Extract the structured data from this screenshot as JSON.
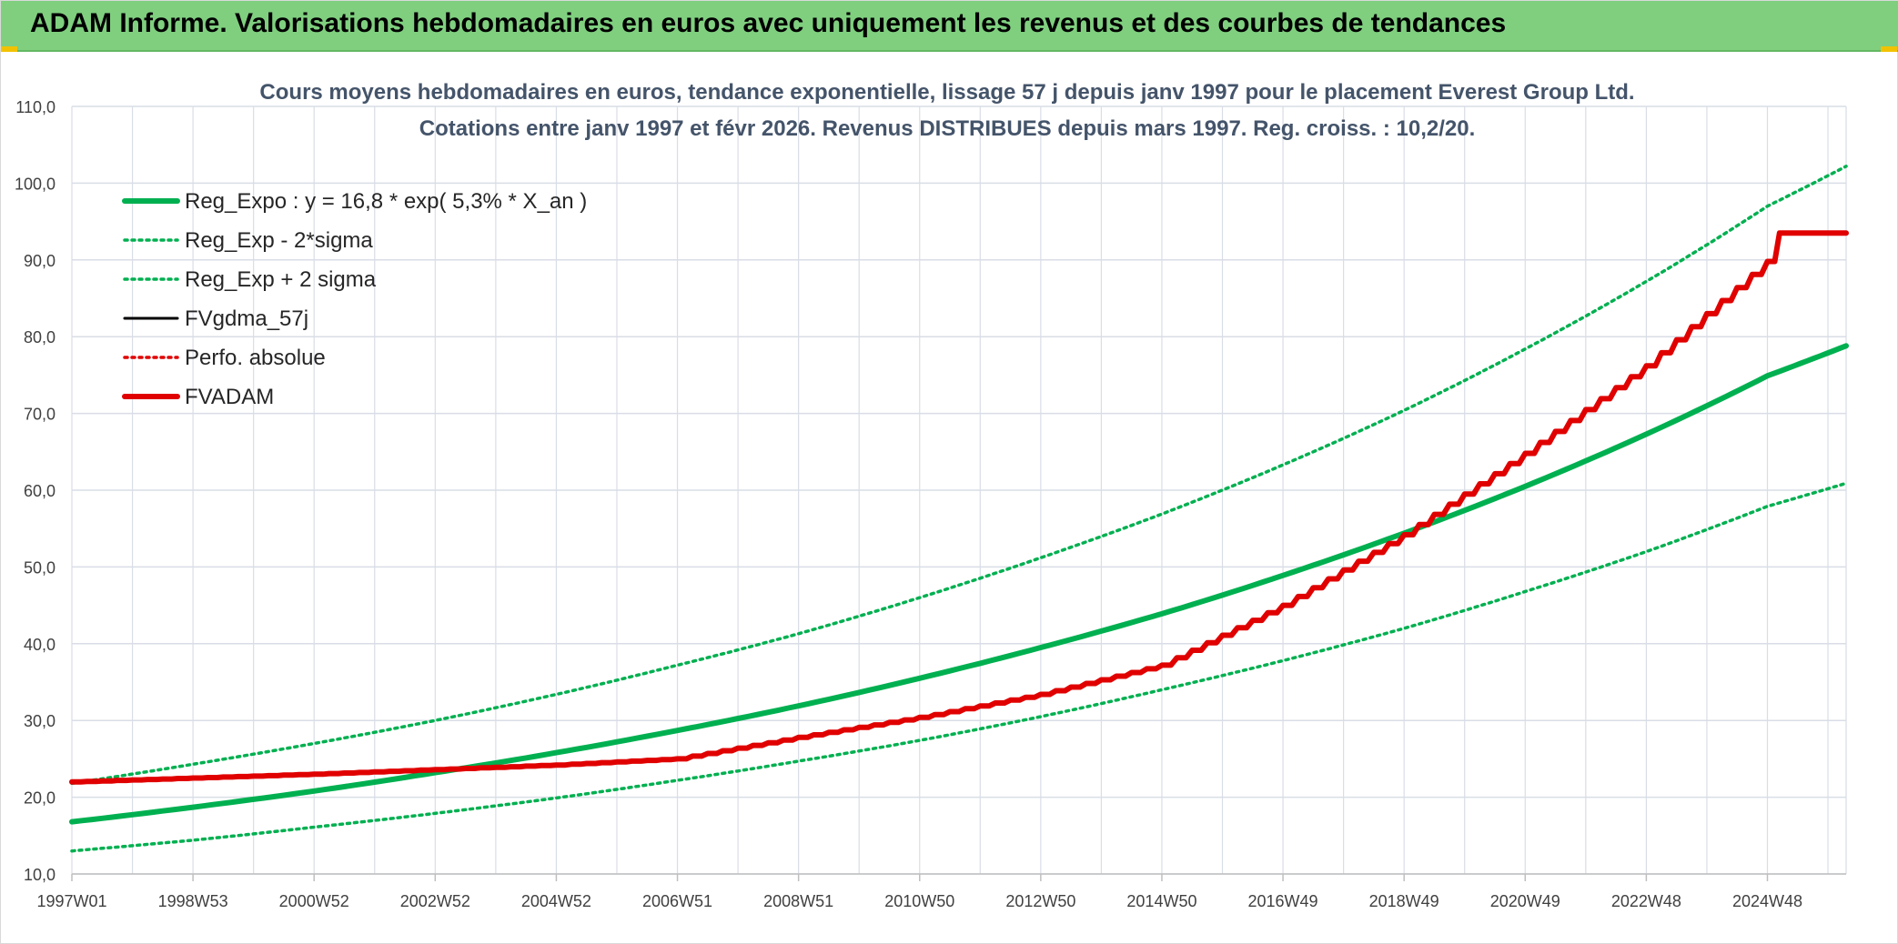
{
  "header": {
    "title": "ADAM Informe. Valorisations hebdomadaires en euros avec uniquement les revenus et des courbes de tendances"
  },
  "colors": {
    "banner": "#7fcf7f",
    "green": "#00b050",
    "red": "#e00000",
    "black": "#000000",
    "grid": "#d9dde6",
    "title_text": "#44546a"
  },
  "chart_data": {
    "type": "line",
    "title_lines": [
      "Cours moyens hebdomadaires en euros, tendance exponentielle, lissage 57 j depuis janv 1997 pour le placement Everest Group Ltd.",
      "Cotations entre janv 1997 et févr 2026. Revenus DISTRIBUES depuis mars 1997. Reg. croiss. : 10,2/20."
    ],
    "xlabel": "",
    "ylabel": "",
    "ylim": [
      10,
      110
    ],
    "xlim": [
      1997.0,
      2026.3
    ],
    "yticks": [
      "10,0",
      "20,0",
      "30,0",
      "40,0",
      "50,0",
      "60,0",
      "70,0",
      "80,0",
      "90,0",
      "100,0",
      "110,0"
    ],
    "xtick_labels": [
      {
        "label": "1997W01",
        "x": 1997.0
      },
      {
        "label": "1998W53",
        "x": 1999.0
      },
      {
        "label": "2000W52",
        "x": 2001.0
      },
      {
        "label": "2002W52",
        "x": 2003.0
      },
      {
        "label": "2004W52",
        "x": 2005.0
      },
      {
        "label": "2006W51",
        "x": 2007.0
      },
      {
        "label": "2008W51",
        "x": 2009.0
      },
      {
        "label": "2010W50",
        "x": 2011.0
      },
      {
        "label": "2012W50",
        "x": 2013.0
      },
      {
        "label": "2014W50",
        "x": 2015.0
      },
      {
        "label": "2016W49",
        "x": 2017.0
      },
      {
        "label": "2018W49",
        "x": 2019.0
      },
      {
        "label": "2020W49",
        "x": 2021.0
      },
      {
        "label": "2022W48",
        "x": 2023.0
      },
      {
        "label": "2024W48",
        "x": 2025.0
      }
    ],
    "grid": true,
    "legend_position": "top-left",
    "series": [
      {
        "name": "Reg_Expo : y = 16,8 * exp( 5,3% *  X_an )",
        "style": "solid-thick",
        "color": "#00b050",
        "x": [
          1997,
          1999,
          2001,
          2003,
          2005,
          2007,
          2009,
          2011,
          2013,
          2015,
          2017,
          2019,
          2021,
          2023,
          2025,
          2026.3
        ],
        "values": [
          16.8,
          18.7,
          20.8,
          23.2,
          25.8,
          28.7,
          31.9,
          35.5,
          39.5,
          43.9,
          48.9,
          54.4,
          60.5,
          67.3,
          74.9,
          78.8
        ]
      },
      {
        "name": "Reg_Exp - 2*sigma",
        "style": "dotted",
        "color": "#00b050",
        "x": [
          1997,
          1999,
          2001,
          2003,
          2005,
          2007,
          2009,
          2011,
          2013,
          2015,
          2017,
          2019,
          2021,
          2023,
          2025,
          2026.3
        ],
        "values": [
          13.0,
          14.4,
          16.1,
          17.9,
          19.9,
          22.2,
          24.7,
          27.4,
          30.5,
          34.0,
          37.8,
          42.0,
          46.8,
          52.0,
          57.9,
          60.9
        ]
      },
      {
        "name": "Reg_Exp + 2 sigma",
        "style": "dotted",
        "color": "#00b050",
        "x": [
          1997,
          1999,
          2001,
          2003,
          2005,
          2007,
          2009,
          2011,
          2013,
          2015,
          2017,
          2019,
          2021,
          2023,
          2025,
          2026.3
        ],
        "values": [
          21.8,
          24.3,
          27.0,
          30.0,
          33.4,
          37.2,
          41.3,
          46.0,
          51.2,
          56.9,
          63.3,
          70.4,
          78.4,
          87.2,
          97.0,
          102.2
        ]
      },
      {
        "name": "FVgdma_57j",
        "style": "solid",
        "color": "#000000",
        "x": [
          1997,
          2001,
          2003,
          2005,
          2007,
          2009,
          2011,
          2013,
          2015,
          2017,
          2019,
          2021,
          2023,
          2025,
          2025.2,
          2026.3
        ],
        "values": [
          22.0,
          23.0,
          23.6,
          24.2,
          25.0,
          27.8,
          30.4,
          33.4,
          37.2,
          45.0,
          54.2,
          64.8,
          76.2,
          89.8,
          93.5,
          93.5
        ]
      },
      {
        "name": "Perfo. absolue",
        "style": "dotted",
        "color": "#e00000",
        "x": [],
        "values": []
      },
      {
        "name": "FVADAM",
        "style": "solid-thick",
        "color": "#e00000",
        "x": [
          1997,
          2001,
          2003,
          2005,
          2007,
          2009,
          2011,
          2013,
          2015,
          2017,
          2019,
          2021,
          2023,
          2025,
          2025.2,
          2026.3
        ],
        "values": [
          22.0,
          23.0,
          23.6,
          24.2,
          25.0,
          27.8,
          30.4,
          33.4,
          37.2,
          45.0,
          54.2,
          64.8,
          76.2,
          89.8,
          93.5,
          93.5
        ]
      }
    ]
  }
}
